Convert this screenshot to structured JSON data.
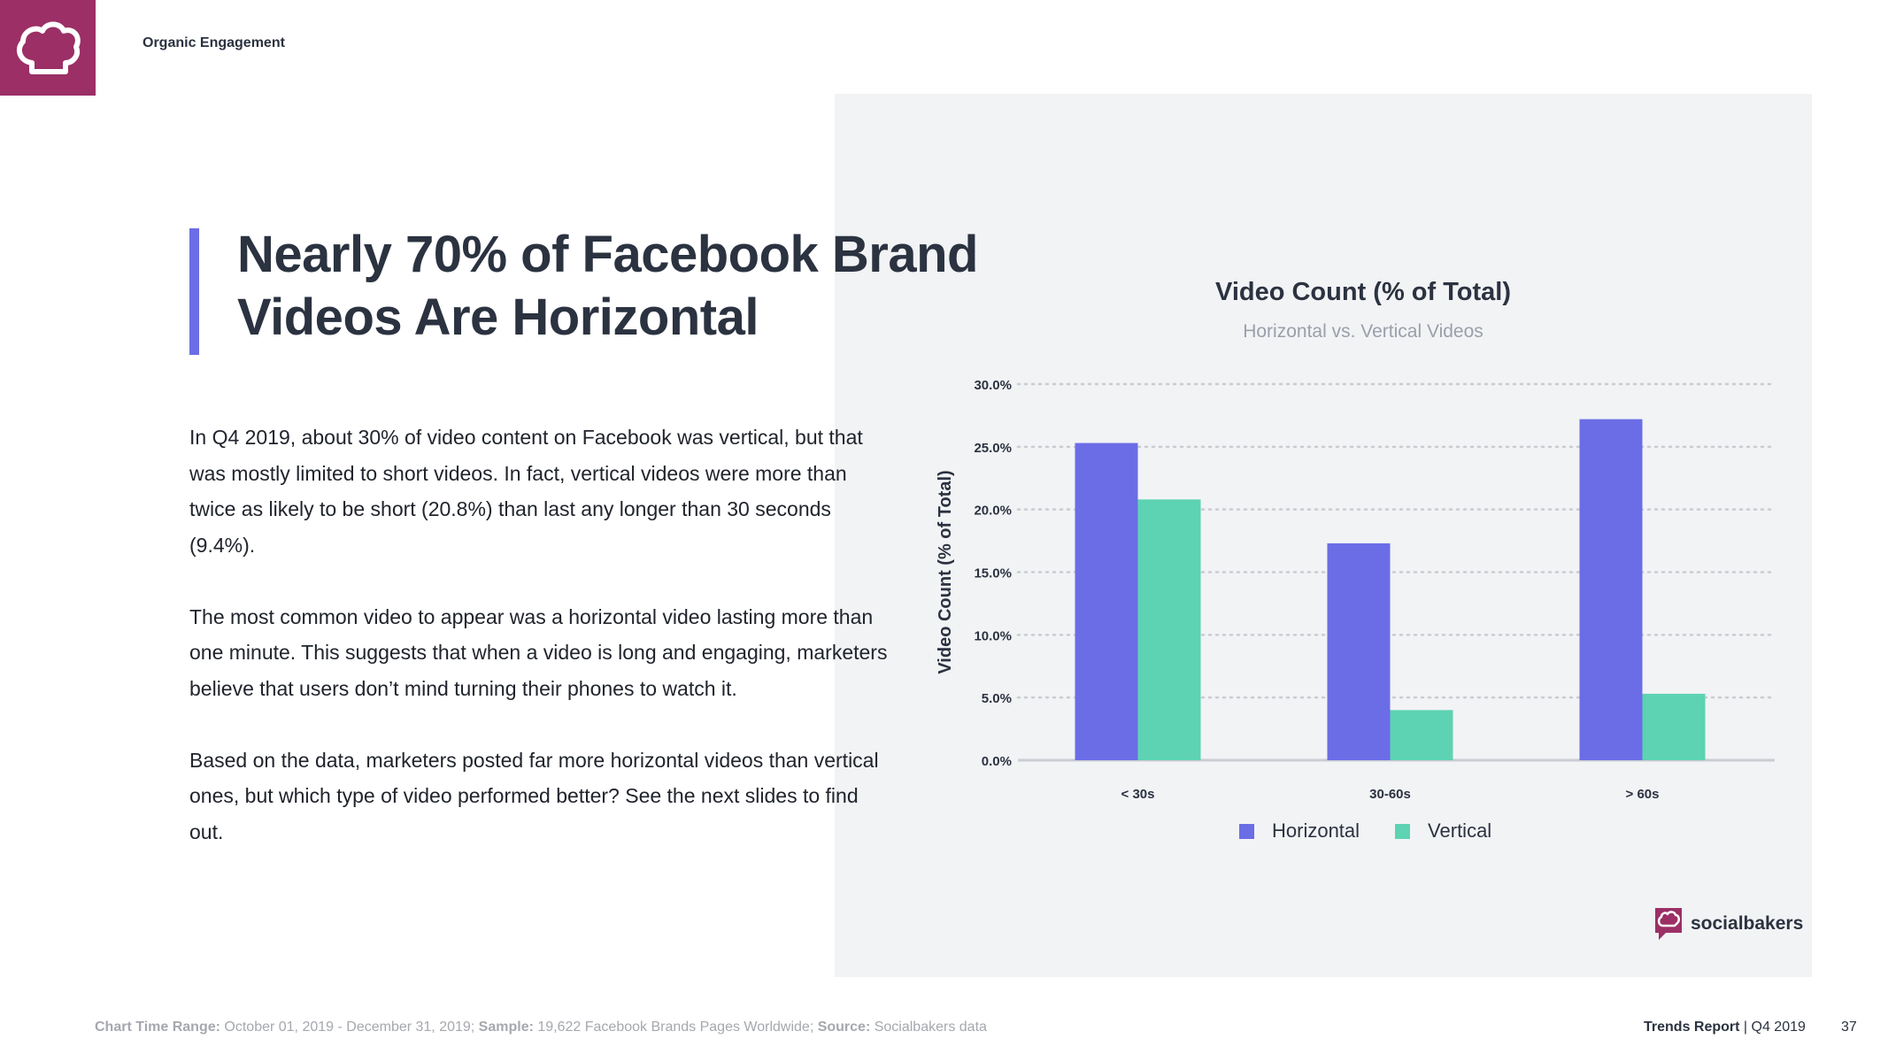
{
  "header": {
    "section": "Organic Engagement",
    "logo_icon": "chef-hat-icon",
    "brand_color": "#9b2f66"
  },
  "headline": {
    "line1": "Nearly 70% of Facebook Brand",
    "line2": "Videos Are Horizontal",
    "accent_color": "#6b6de6"
  },
  "body": {
    "p1": "In Q4 2019, about 30% of video content on Facebook was vertical, but that was mostly limited to short videos. In fact, vertical videos were more than twice as likely to be short (20.8%) than last any longer than 30 seconds (9.4%).",
    "p2": "The most common video to appear was a horizontal video lasting more than one minute. This suggests that when a video is long and engaging, marketers believe that users don’t mind turning their phones to watch it.",
    "p3": "Based on the data, marketers posted far more horizontal videos than vertical ones, but which type of video performed better? See the next slides to find out."
  },
  "chart_data": {
    "type": "bar",
    "title": "Video Count (% of Total)",
    "subtitle": "Horizontal vs. Vertical Videos",
    "ylabel": "Video Count (% of Total)",
    "xlabel": "",
    "categories": [
      "< 30s",
      "30-60s",
      "> 60s"
    ],
    "series": [
      {
        "name": "Horizontal",
        "color": "#6b6de6",
        "values": [
          25.3,
          17.3,
          27.2
        ]
      },
      {
        "name": "Vertical",
        "color": "#5dd3b3",
        "values": [
          20.8,
          4.0,
          5.3
        ]
      }
    ],
    "ylim": [
      0,
      30
    ],
    "yticks": [
      "0.0%",
      "5.0%",
      "10.0%",
      "15.0%",
      "20.0%",
      "25.0%",
      "30.0%"
    ],
    "grid": true,
    "legend": "bottom"
  },
  "brand": {
    "name": "socialbakers",
    "icon": "socialbakers-logo-icon"
  },
  "footer": {
    "label1": "Chart Time Range:",
    "value1": " October  01, 2019 - December 31, 2019;",
    "label2": " Sample:",
    "value2": " 19,622 Facebook Brands Pages Worldwide;",
    "label3": " Source:",
    "value3": " Socialbakers data",
    "report": "Trends Report",
    "period": " | Q4 2019",
    "page": "37"
  }
}
